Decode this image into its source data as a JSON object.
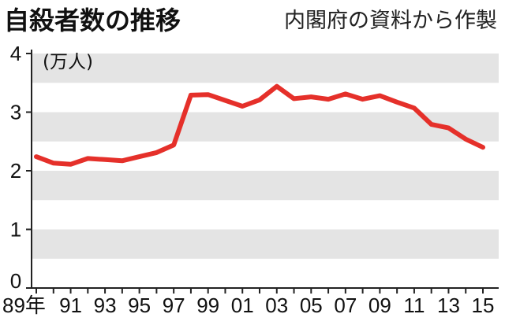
{
  "chart_data": {
    "type": "line",
    "title": "自殺者数の推移",
    "source": "内閣府の資料から作製",
    "ylabel": "(万人)",
    "xlabel": "",
    "ylim": [
      0,
      4
    ],
    "y_ticks": [
      0,
      1,
      2,
      3,
      4
    ],
    "x": [
      1989,
      1990,
      1991,
      1992,
      1993,
      1994,
      1995,
      1996,
      1997,
      1998,
      1999,
      2000,
      2001,
      2002,
      2003,
      2004,
      2005,
      2006,
      2007,
      2008,
      2009,
      2010,
      2011,
      2012,
      2013,
      2014,
      2015
    ],
    "x_ticks": [
      1989,
      1991,
      1993,
      1995,
      1997,
      1999,
      2001,
      2003,
      2005,
      2007,
      2009,
      2011,
      2013,
      2015
    ],
    "x_tick_labels": [
      "89年",
      "91",
      "93",
      "95",
      "97",
      "99",
      "01",
      "03",
      "05",
      "07",
      "09",
      "11",
      "13",
      "15"
    ],
    "series": [
      {
        "values": [
          2.24,
          2.13,
          2.11,
          2.21,
          2.19,
          2.17,
          2.24,
          2.31,
          2.44,
          3.29,
          3.3,
          3.2,
          3.1,
          3.21,
          3.44,
          3.23,
          3.26,
          3.22,
          3.31,
          3.22,
          3.28,
          3.17,
          3.07,
          2.79,
          2.73,
          2.54,
          2.4
        ]
      }
    ],
    "grid": "alternating horizontal bands",
    "colors": {
      "line": "#e5302a",
      "band": "#e4e4e4",
      "axis": "#222222"
    }
  }
}
